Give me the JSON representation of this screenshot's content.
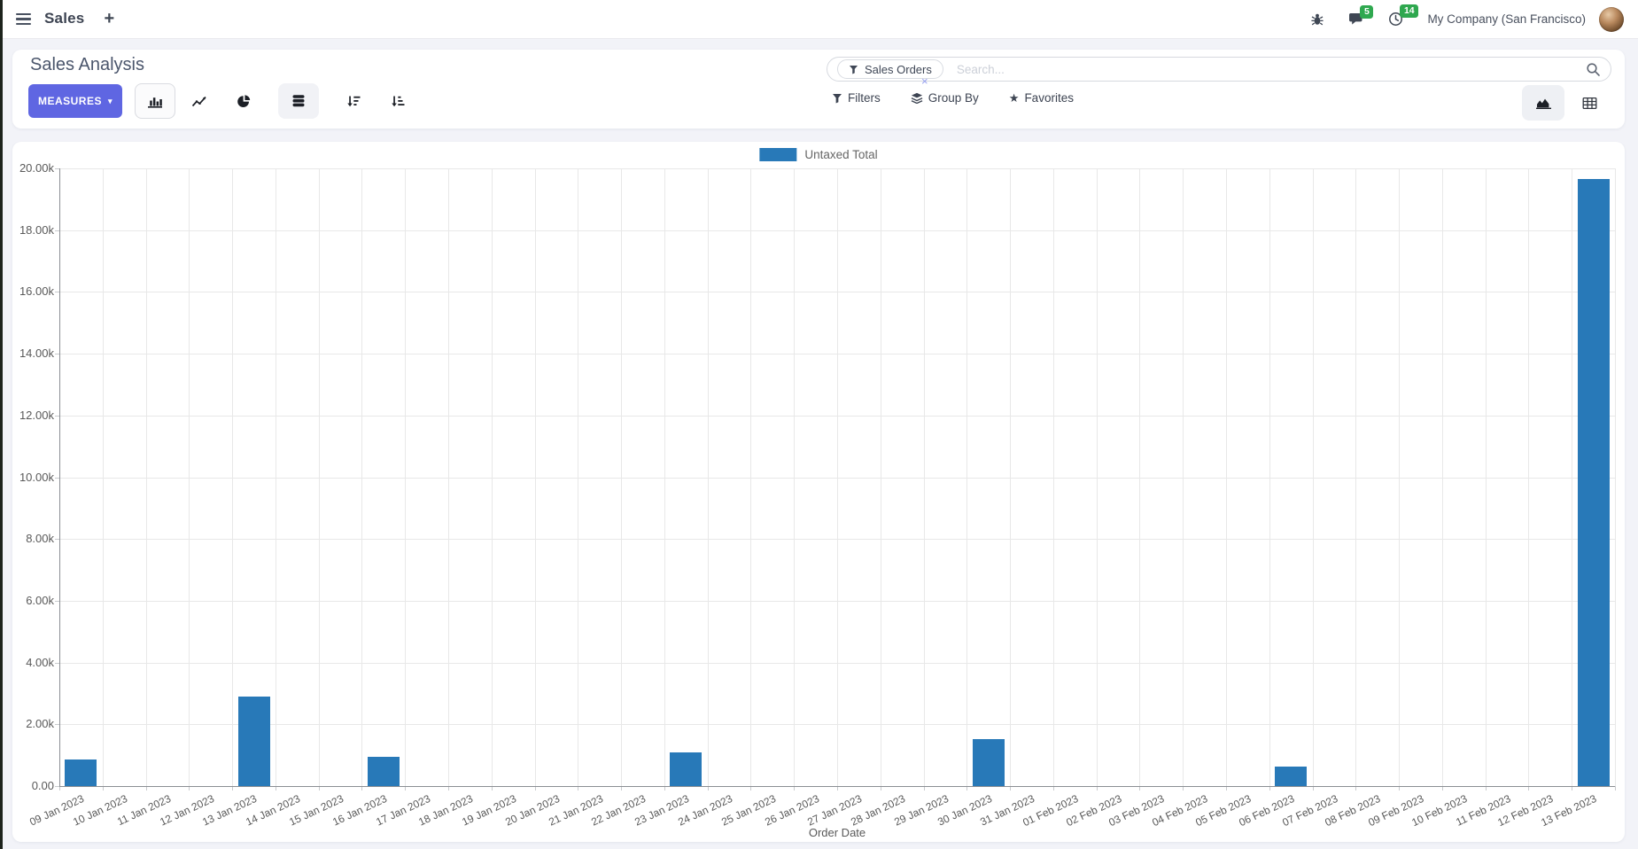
{
  "app": {
    "name": "Sales",
    "company": "My Company (San Francisco)",
    "badges": {
      "messages": "5",
      "activities": "14"
    }
  },
  "control_panel": {
    "title": "Sales Analysis",
    "measures_label": "MEASURES",
    "search": {
      "facet_label": "Sales Orders",
      "placeholder": "Search...",
      "remove_icon": "×"
    },
    "filters_label": "Filters",
    "group_by_label": "Group By",
    "favorites_label": "Favorites"
  },
  "icons": {
    "star": "★",
    "caret_down": "▾",
    "plus": "+"
  },
  "colors": {
    "accent": "#5f66e2",
    "badge_green": "#2fa84f",
    "bar_blue": "#2879b8"
  },
  "chart_data": {
    "type": "bar",
    "title": "",
    "xlabel": "Order Date",
    "ylabel": "",
    "ylim": [
      0,
      20000
    ],
    "y_tick_step": 2000,
    "y_tick_labels": [
      "0.00",
      "2.00k",
      "4.00k",
      "6.00k",
      "8.00k",
      "10.00k",
      "12.00k",
      "14.00k",
      "16.00k",
      "18.00k",
      "20.00k"
    ],
    "grid": true,
    "legend_position": "top",
    "categories": [
      "09 Jan 2023",
      "10 Jan 2023",
      "11 Jan 2023",
      "12 Jan 2023",
      "13 Jan 2023",
      "14 Jan 2023",
      "15 Jan 2023",
      "16 Jan 2023",
      "17 Jan 2023",
      "18 Jan 2023",
      "19 Jan 2023",
      "20 Jan 2023",
      "21 Jan 2023",
      "22 Jan 2023",
      "23 Jan 2023",
      "24 Jan 2023",
      "25 Jan 2023",
      "26 Jan 2023",
      "27 Jan 2023",
      "28 Jan 2023",
      "29 Jan 2023",
      "30 Jan 2023",
      "31 Jan 2023",
      "01 Feb 2023",
      "02 Feb 2023",
      "03 Feb 2023",
      "04 Feb 2023",
      "05 Feb 2023",
      "06 Feb 2023",
      "07 Feb 2023",
      "08 Feb 2023",
      "09 Feb 2023",
      "10 Feb 2023",
      "11 Feb 2023",
      "12 Feb 2023",
      "13 Feb 2023"
    ],
    "series": [
      {
        "name": "Untaxed Total",
        "color": "#2879b8",
        "values": [
          850,
          0,
          0,
          0,
          2900,
          0,
          0,
          950,
          0,
          0,
          0,
          0,
          0,
          0,
          1100,
          0,
          0,
          0,
          0,
          0,
          0,
          1520,
          0,
          0,
          0,
          0,
          0,
          0,
          620,
          0,
          0,
          0,
          0,
          0,
          0,
          19650
        ]
      }
    ]
  }
}
